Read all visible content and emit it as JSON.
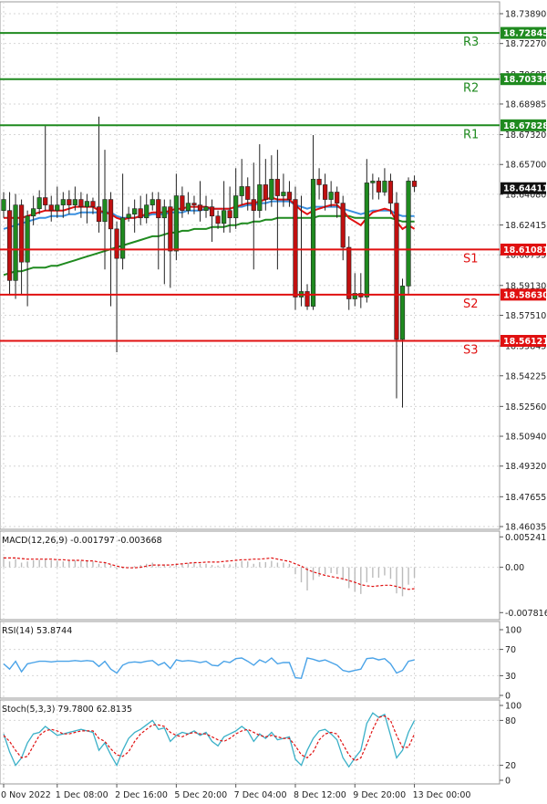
{
  "chart_data": {
    "type": "candlestick",
    "x_labels": [
      "0 Nov 2022",
      "1 Dec 08:00",
      "2 Dec 16:00",
      "5 Dec 20:00",
      "7 Dec 04:00",
      "8 Dec 12:00",
      "9 Dec 20:00",
      "13 Dec 00:00"
    ],
    "x_label_candle_index": [
      0,
      9,
      19,
      29,
      39,
      49,
      59,
      69
    ],
    "price_axis": {
      "ylim": [
        18.46035,
        18.7389
      ],
      "ticks": [
        "18.73890",
        "18.72270",
        "18.70605",
        "18.68985",
        "18.67320",
        "18.65700",
        "18.64080",
        "18.62415",
        "18.60795",
        "18.59130",
        "18.57510",
        "18.55845",
        "18.54225",
        "18.52560",
        "18.50940",
        "18.49320",
        "18.47655",
        "18.46035"
      ]
    },
    "current_price": {
      "value": 18.64411,
      "label": "18.64411"
    },
    "levels": [
      {
        "name": "R3",
        "value": 18.72845,
        "label": "18.72845",
        "color": "#1f8a1f"
      },
      {
        "name": "R2",
        "value": 18.70336,
        "label": "18.70336",
        "color": "#1f8a1f"
      },
      {
        "name": "R1",
        "value": 18.67828,
        "label": "18.67828",
        "color": "#1f8a1f"
      },
      {
        "name": "S1",
        "value": 18.61081,
        "label": "18.61081",
        "color": "#e01010"
      },
      {
        "name": "S2",
        "value": 18.5863,
        "label": "18.58630",
        "color": "#e01010"
      },
      {
        "name": "S3",
        "value": 18.56121,
        "label": "18.56121",
        "color": "#e01010"
      }
    ],
    "candles": [
      [
        18.632,
        18.638,
        18.628,
        18.642
      ],
      [
        18.632,
        18.594,
        18.586,
        18.642
      ],
      [
        18.594,
        18.635,
        18.584,
        18.641
      ],
      [
        18.635,
        18.604,
        18.586,
        18.638
      ],
      [
        18.604,
        18.629,
        18.58,
        18.632
      ],
      [
        18.629,
        18.633,
        18.624,
        18.64
      ],
      [
        18.633,
        18.639,
        18.63,
        18.643
      ],
      [
        18.639,
        18.635,
        18.632,
        18.678
      ],
      [
        18.635,
        18.632,
        18.626,
        18.64
      ],
      [
        18.632,
        18.635,
        18.628,
        18.645
      ],
      [
        18.635,
        18.638,
        18.628,
        18.642
      ],
      [
        18.638,
        18.635,
        18.63,
        18.643
      ],
      [
        18.635,
        18.638,
        18.632,
        18.645
      ],
      [
        18.638,
        18.634,
        18.628,
        18.642
      ],
      [
        18.634,
        18.637,
        18.625,
        18.641
      ],
      [
        18.637,
        18.634,
        18.63,
        18.639
      ],
      [
        18.634,
        18.626,
        18.62,
        18.683
      ],
      [
        18.626,
        18.638,
        18.6,
        18.665
      ],
      [
        18.638,
        18.622,
        18.58,
        18.642
      ],
      [
        18.622,
        18.606,
        18.555,
        18.626
      ],
      [
        18.606,
        18.628,
        18.6,
        18.652
      ],
      [
        18.628,
        18.63,
        18.626,
        18.634
      ],
      [
        18.63,
        18.633,
        18.62,
        18.638
      ],
      [
        18.633,
        18.628,
        18.624,
        18.64
      ],
      [
        18.628,
        18.635,
        18.625,
        18.641
      ],
      [
        18.635,
        18.638,
        18.632,
        18.642
      ],
      [
        18.638,
        18.628,
        18.6,
        18.642
      ],
      [
        18.628,
        18.634,
        18.592,
        18.638
      ],
      [
        18.634,
        18.61,
        18.59,
        18.638
      ],
      [
        18.61,
        18.64,
        18.605,
        18.652
      ],
      [
        18.64,
        18.632,
        18.628,
        18.645
      ],
      [
        18.632,
        18.636,
        18.63,
        18.642
      ],
      [
        18.636,
        18.635,
        18.63,
        18.64
      ],
      [
        18.635,
        18.632,
        18.626,
        18.648
      ],
      [
        18.632,
        18.634,
        18.628,
        18.64
      ],
      [
        18.634,
        18.629,
        18.615,
        18.638
      ],
      [
        18.629,
        18.625,
        18.622,
        18.632
      ],
      [
        18.625,
        18.632,
        18.62,
        18.648
      ],
      [
        18.632,
        18.628,
        18.62,
        18.645
      ],
      [
        18.628,
        18.64,
        18.622,
        18.655
      ],
      [
        18.64,
        18.645,
        18.635,
        18.66
      ],
      [
        18.645,
        18.638,
        18.632,
        18.65
      ],
      [
        18.638,
        18.632,
        18.6,
        18.658
      ],
      [
        18.632,
        18.646,
        18.628,
        18.668
      ],
      [
        18.646,
        18.638,
        18.632,
        18.66
      ],
      [
        18.638,
        18.649,
        18.634,
        18.662
      ],
      [
        18.649,
        18.64,
        18.6,
        18.665
      ],
      [
        18.64,
        18.642,
        18.634,
        18.652
      ],
      [
        18.642,
        18.638,
        18.634,
        18.648
      ],
      [
        18.638,
        18.585,
        18.578,
        18.645
      ],
      [
        18.585,
        18.588,
        18.58,
        18.64
      ],
      [
        18.588,
        18.58,
        18.578,
        18.592
      ],
      [
        18.58,
        18.649,
        18.578,
        18.673
      ],
      [
        18.649,
        18.646,
        18.638,
        18.655
      ],
      [
        18.646,
        18.638,
        18.632,
        18.652
      ],
      [
        18.638,
        18.642,
        18.634,
        18.648
      ],
      [
        18.642,
        18.636,
        18.628,
        18.645
      ],
      [
        18.636,
        18.612,
        18.605,
        18.64
      ],
      [
        18.612,
        18.584,
        18.578,
        18.618
      ],
      [
        18.584,
        18.587,
        18.58,
        18.598
      ],
      [
        18.587,
        18.585,
        18.579,
        18.598
      ],
      [
        18.585,
        18.647,
        18.582,
        18.66
      ],
      [
        18.647,
        18.648,
        18.638,
        18.652
      ],
      [
        18.648,
        18.642,
        18.638,
        18.65
      ],
      [
        18.642,
        18.648,
        18.64,
        18.655
      ],
      [
        18.648,
        18.636,
        18.63,
        18.652
      ],
      [
        18.636,
        18.562,
        18.53,
        18.642
      ],
      [
        18.562,
        18.591,
        18.525,
        18.595
      ],
      [
        18.591,
        18.648,
        18.586,
        18.65
      ],
      [
        18.648,
        18.645,
        18.642,
        18.651
      ]
    ],
    "ma_red": [
      18.628,
      18.628,
      18.628,
      18.628,
      18.629,
      18.63,
      18.631,
      18.632,
      18.632,
      18.632,
      18.632,
      18.633,
      18.634,
      18.634,
      18.634,
      18.634,
      18.632,
      18.631,
      18.63,
      18.628,
      18.627,
      18.628,
      18.628,
      18.629,
      18.63,
      18.631,
      18.631,
      18.631,
      18.632,
      18.633,
      18.633,
      18.634,
      18.634,
      18.634,
      18.634,
      18.633,
      18.633,
      18.633,
      18.633,
      18.634,
      18.635,
      18.636,
      18.636,
      18.637,
      18.638,
      18.639,
      18.638,
      18.638,
      18.638,
      18.635,
      18.632,
      18.63,
      18.632,
      18.633,
      18.634,
      18.635,
      18.635,
      18.632,
      18.628,
      18.626,
      18.624,
      18.628,
      18.631,
      18.632,
      18.633,
      18.632,
      18.626,
      18.622,
      18.624,
      18.622
    ],
    "ma_blue": [
      18.622,
      18.623,
      18.624,
      18.625,
      18.626,
      18.627,
      18.628,
      18.628,
      18.629,
      18.629,
      18.629,
      18.63,
      18.63,
      18.631,
      18.631,
      18.631,
      18.631,
      18.631,
      18.631,
      18.629,
      18.628,
      18.628,
      18.628,
      18.629,
      18.629,
      18.63,
      18.63,
      18.63,
      18.631,
      18.631,
      18.631,
      18.632,
      18.632,
      18.632,
      18.633,
      18.633,
      18.633,
      18.633,
      18.633,
      18.634,
      18.634,
      18.635,
      18.635,
      18.636,
      18.636,
      18.637,
      18.637,
      18.637,
      18.637,
      18.635,
      18.634,
      18.633,
      18.634,
      18.634,
      18.634,
      18.634,
      18.634,
      18.633,
      18.632,
      18.631,
      18.63,
      18.631,
      18.632,
      18.632,
      18.632,
      18.632,
      18.63,
      18.629,
      18.629,
      18.629
    ],
    "ma_green": [
      18.597,
      18.598,
      18.599,
      18.599,
      18.6,
      18.601,
      18.601,
      18.601,
      18.602,
      18.602,
      18.603,
      18.604,
      18.605,
      18.606,
      18.607,
      18.608,
      18.609,
      18.61,
      18.611,
      18.612,
      18.613,
      18.614,
      18.615,
      18.616,
      18.617,
      18.618,
      18.618,
      18.619,
      18.62,
      18.62,
      18.621,
      18.621,
      18.622,
      18.622,
      18.622,
      18.623,
      18.623,
      18.623,
      18.624,
      18.624,
      18.625,
      18.625,
      18.626,
      18.626,
      18.627,
      18.627,
      18.628,
      18.628,
      18.628,
      18.628,
      18.628,
      18.628,
      18.628,
      18.629,
      18.629,
      18.629,
      18.629,
      18.629,
      18.629,
      18.628,
      18.628,
      18.628,
      18.628,
      18.628,
      18.628,
      18.628,
      18.627,
      18.626,
      18.626,
      18.626
    ],
    "macd": {
      "label": "MACD(12,26,9) -0.001797 -0.003668",
      "ylim": [
        -0.0084,
        0.0056
      ],
      "ticks": [
        "0.005241",
        "0.00",
        "-0.007816"
      ],
      "tick_values": [
        0.005241,
        0,
        -0.007816
      ],
      "hist": [
        0.0018,
        0.001,
        0.0014,
        0.0008,
        0.001,
        0.0012,
        0.0013,
        0.0014,
        0.0012,
        0.0011,
        0.001,
        0.0011,
        0.0012,
        0.0011,
        0.0012,
        0.001,
        0.0006,
        0.0009,
        0.0004,
        -0.0004,
        -0.0002,
        0.0,
        0.0002,
        0.0004,
        0.0006,
        0.0008,
        0.0004,
        0.0005,
        0.0002,
        0.0006,
        0.0006,
        0.0007,
        0.0008,
        0.0006,
        0.0006,
        0.0004,
        0.0003,
        0.0005,
        0.0005,
        0.0008,
        0.0011,
        0.001,
        0.0006,
        0.0009,
        0.0009,
        0.0011,
        0.0008,
        0.0008,
        0.0006,
        -0.0012,
        -0.0026,
        -0.004,
        -0.0022,
        -0.0016,
        -0.0012,
        -0.001,
        -0.0012,
        -0.0022,
        -0.0036,
        -0.0042,
        -0.0046,
        -0.0026,
        -0.0018,
        -0.0018,
        -0.0014,
        -0.002,
        -0.0045,
        -0.005,
        -0.003,
        -0.0018
      ],
      "signal": [
        0.0016,
        0.0016,
        0.0016,
        0.0015,
        0.0014,
        0.0014,
        0.0014,
        0.0014,
        0.0014,
        0.0013,
        0.0013,
        0.0012,
        0.0012,
        0.0012,
        0.0011,
        0.0011,
        0.0009,
        0.0008,
        0.0005,
        0.0002,
        0.0,
        -0.0001,
        -0.0001,
        0.0,
        0.0002,
        0.0004,
        0.0004,
        0.0004,
        0.0004,
        0.0005,
        0.0006,
        0.0007,
        0.0008,
        0.0008,
        0.0009,
        0.0009,
        0.0009,
        0.001,
        0.0011,
        0.0012,
        0.0013,
        0.0013,
        0.0014,
        0.0014,
        0.0015,
        0.0016,
        0.0014,
        0.0012,
        0.001,
        0.0006,
        0.0002,
        -0.0004,
        -0.0008,
        -0.0011,
        -0.0014,
        -0.0016,
        -0.0018,
        -0.002,
        -0.0023,
        -0.0026,
        -0.003,
        -0.0032,
        -0.0033,
        -0.0032,
        -0.0031,
        -0.0031,
        -0.0033,
        -0.0036,
        -0.0038,
        -0.0037
      ]
    },
    "rsi": {
      "label": "RSI(14) 53.8744",
      "ylim": [
        0,
        100
      ],
      "ticks": [
        "100",
        "70",
        "30",
        "0"
      ],
      "tick_values": [
        100,
        70,
        30,
        0
      ],
      "values": [
        48,
        40,
        52,
        36,
        48,
        50,
        52,
        52,
        51,
        52,
        52,
        52,
        53,
        52,
        53,
        52,
        44,
        52,
        40,
        34,
        46,
        50,
        51,
        50,
        52,
        53,
        46,
        50,
        41,
        54,
        52,
        53,
        52,
        50,
        52,
        46,
        45,
        52,
        50,
        56,
        57,
        52,
        46,
        54,
        50,
        57,
        48,
        50,
        50,
        27,
        26,
        57,
        55,
        52,
        54,
        50,
        46,
        38,
        36,
        38,
        40,
        56,
        57,
        54,
        56,
        48,
        34,
        38,
        52,
        54
      ]
    },
    "stoch": {
      "label": "Stoch(5,3,3) 79.7800 62.8135",
      "ylim": [
        0,
        100
      ],
      "ticks": [
        "100",
        "80",
        "20",
        "0"
      ],
      "tick_values": [
        100,
        80,
        20,
        0
      ],
      "k": [
        62,
        38,
        20,
        30,
        50,
        62,
        64,
        72,
        66,
        60,
        62,
        64,
        66,
        68,
        66,
        64,
        40,
        50,
        34,
        20,
        40,
        56,
        64,
        68,
        74,
        80,
        68,
        70,
        52,
        60,
        64,
        62,
        66,
        60,
        64,
        52,
        46,
        58,
        62,
        66,
        72,
        66,
        52,
        62,
        56,
        64,
        54,
        56,
        58,
        28,
        20,
        40,
        56,
        66,
        68,
        62,
        54,
        30,
        18,
        30,
        40,
        76,
        90,
        84,
        88,
        60,
        30,
        40,
        64,
        80
      ],
      "d": [
        60,
        52,
        40,
        30,
        32,
        46,
        60,
        66,
        68,
        66,
        62,
        62,
        64,
        66,
        66,
        66,
        56,
        52,
        42,
        34,
        32,
        38,
        52,
        62,
        68,
        74,
        74,
        72,
        64,
        60,
        58,
        62,
        64,
        62,
        62,
        58,
        54,
        52,
        56,
        62,
        66,
        68,
        64,
        60,
        58,
        60,
        58,
        56,
        56,
        46,
        34,
        30,
        38,
        54,
        62,
        64,
        62,
        48,
        34,
        26,
        30,
        48,
        68,
        84,
        86,
        80,
        60,
        44,
        44,
        62
      ]
    }
  }
}
